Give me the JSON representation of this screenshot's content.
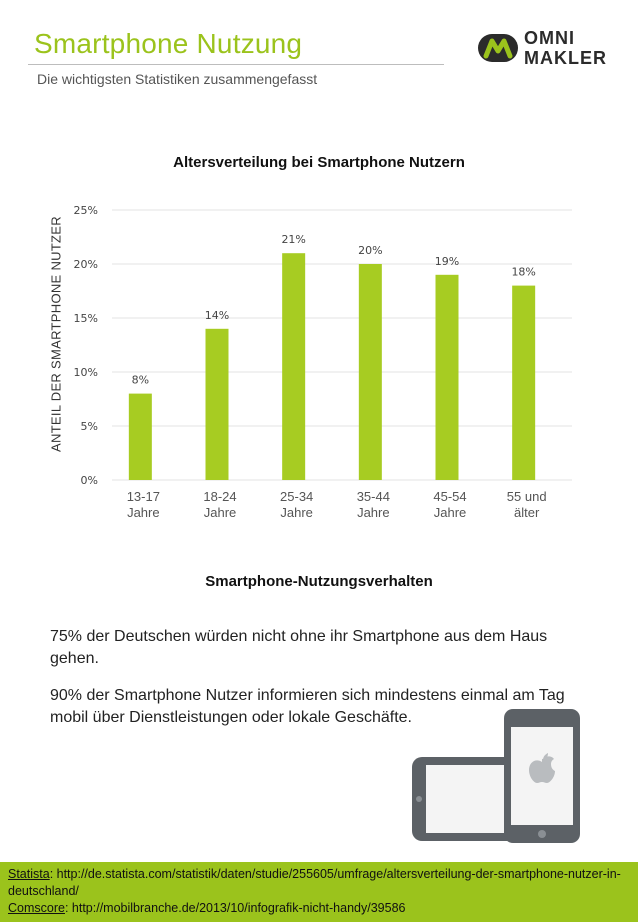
{
  "header": {
    "title": "Smartphone Nutzung",
    "subtitle": "Die wichtigsten Statistiken zusammengefasst",
    "logo_line1": "OMNI",
    "logo_line2": "MAKLER"
  },
  "colors": {
    "accent": "#9bc31c",
    "bar": "#a7cc22",
    "grid": "#e3e3e3"
  },
  "chart_data": {
    "type": "bar",
    "title": "Altersverteilung bei Smartphone Nutzern",
    "ylabel": "ANTEIL DER SMARTPHONE NUTZER",
    "xlabel": "",
    "categories": [
      [
        "13-17",
        "Jahre"
      ],
      [
        "18-24",
        "Jahre"
      ],
      [
        "25-34",
        "Jahre"
      ],
      [
        "35-44",
        "Jahre"
      ],
      [
        "45-54",
        "Jahre"
      ],
      [
        "55 und",
        "älter"
      ]
    ],
    "values": [
      8,
      14,
      21,
      20,
      19,
      18
    ],
    "data_labels": [
      "8%",
      "14%",
      "21%",
      "20%",
      "19%",
      "18%"
    ],
    "yticks": [
      0,
      5,
      10,
      15,
      20,
      25
    ],
    "ytick_labels": [
      "0%",
      "5%",
      "10%",
      "15%",
      "20%",
      "25%"
    ],
    "ylim": [
      0,
      25
    ],
    "grid": true
  },
  "behavior": {
    "title": "Smartphone-Nutzungsverhalten",
    "p1": "75% der Deutschen würden nicht ohne ihr Smartphone aus dem Haus gehen.",
    "p2": "90% der Smartphone Nutzer informieren sich mindestens einmal am Tag mobil über Dienstleistungen oder lokale Geschäfte."
  },
  "footer": {
    "statista_label": "Statista",
    "statista_url": ": http://de.statista.com/statistik/daten/studie/255605/umfrage/altersverteilung-der-smartphone-nutzer-in-deutschland/",
    "comscore_label": "Comscore",
    "comscore_url": ": http://mobilbranche.de/2013/10/infografik-nicht-handy/39586"
  }
}
